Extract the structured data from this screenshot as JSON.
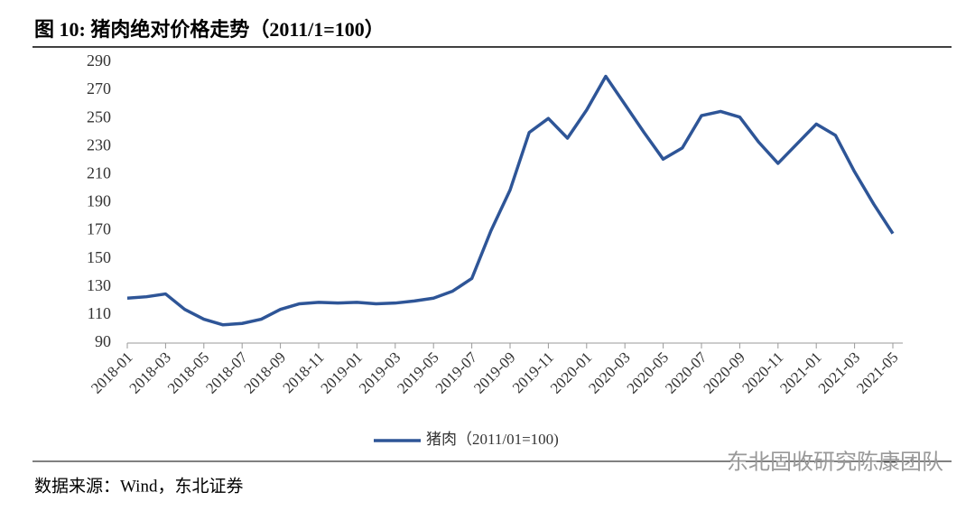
{
  "chart_data": {
    "type": "line",
    "title": "图 10: 猪肉绝对价格走势（2011/1=100）",
    "source": "数据来源：Wind，东北证券",
    "watermark": "东北固收研究陈康团队",
    "categories": [
      "2018-01",
      null,
      "2018-03",
      null,
      "2018-05",
      null,
      "2018-07",
      null,
      "2018-09",
      null,
      "2018-11",
      null,
      "2019-01",
      null,
      "2019-03",
      null,
      "2019-05",
      null,
      "2019-07",
      null,
      "2019-09",
      null,
      "2019-11",
      null,
      "2020-01",
      null,
      "2020-03",
      null,
      "2020-05",
      null,
      "2020-07",
      null,
      "2020-09",
      null,
      "2020-11",
      null,
      "2021-01",
      null,
      "2021-03",
      null,
      "2021-05"
    ],
    "series": [
      {
        "name": "猪肉（2011/01=100)",
        "color": "#2e5597",
        "values": [
          122,
          123,
          125,
          114,
          107,
          103,
          104,
          107,
          114,
          118,
          119,
          118.5,
          119,
          118,
          118.5,
          120,
          122,
          127,
          136,
          170,
          199,
          240,
          250,
          236,
          256,
          280,
          260,
          240,
          221,
          229,
          252,
          255,
          251,
          233,
          218,
          232,
          246,
          238,
          212,
          189,
          168
        ]
      }
    ],
    "ylim": [
      90,
      290
    ],
    "yticks": [
      90,
      110,
      130,
      150,
      170,
      190,
      210,
      230,
      250,
      270,
      290
    ],
    "legend": "bottom"
  }
}
